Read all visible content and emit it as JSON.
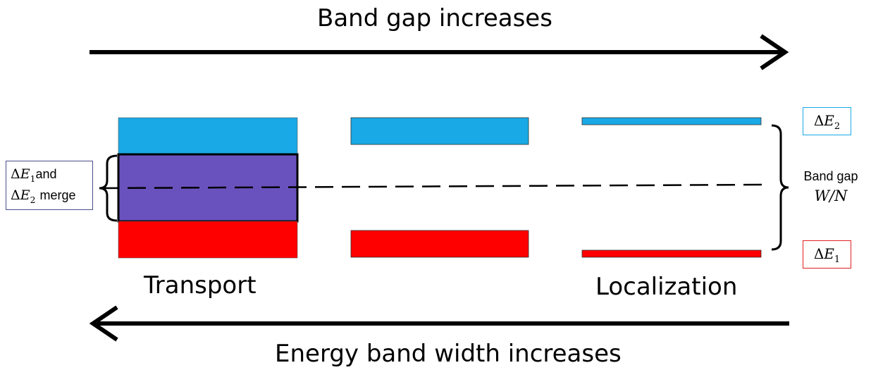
{
  "top_arrow": {
    "label": "Band gap increases"
  },
  "bottom_arrow": {
    "label": "Energy band width increases"
  },
  "regions": {
    "left": "Transport",
    "right": "Localization"
  },
  "left_box": {
    "delta": "Δ",
    "var": "E",
    "sub1": "1",
    "mid": "and",
    "sub2": "2",
    "tail": "merge"
  },
  "band_gap": {
    "label": "Band gap",
    "formula": "W/N"
  },
  "right_top_label": {
    "delta": "Δ",
    "var": "E",
    "sub": "2"
  },
  "right_bottom_label": {
    "delta": "Δ",
    "var": "E",
    "sub": "1"
  },
  "colors": {
    "upper_band": "#19A9E6",
    "lower_band": "#FF0000",
    "merged_band": "#6A52BE",
    "upper_label_border": "#19A9E6",
    "lower_label_border": "#E02020",
    "left_label_border": "#4A4E8A"
  }
}
